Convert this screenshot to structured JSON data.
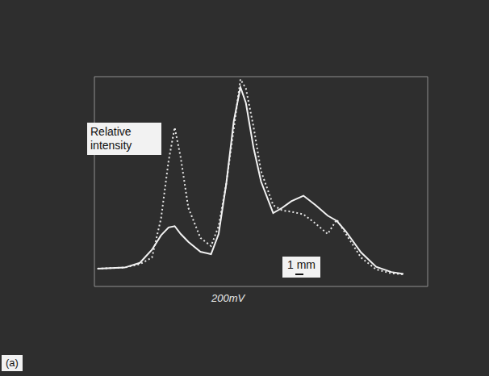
{
  "chart_data": {
    "type": "line",
    "ylabel": "Relative intensity",
    "annotations": [
      "200mV",
      "1 mm"
    ],
    "panel": "(a)",
    "x": [
      -0.9,
      0,
      0.5,
      0.9,
      1.2,
      1.45,
      1.65,
      1.85,
      2.1,
      2.5,
      2.85,
      3.1,
      3.35,
      3.6,
      3.82,
      4.0,
      4.25,
      4.5,
      4.9,
      5.2,
      5.5,
      5.9,
      6.3,
      6.7,
      7.0,
      7.3,
      7.8,
      8.3,
      8.8,
      9.2
    ],
    "series": [
      {
        "color": "#e6e6e6",
        "line_style": "dotted",
        "values": [
          0.68,
          0.72,
          0.85,
          1.1,
          2.6,
          4.8,
          6.06,
          4.9,
          3.0,
          1.85,
          1.54,
          2.3,
          3.9,
          6.0,
          7.9,
          7.55,
          6.1,
          4.4,
          3.1,
          2.9,
          2.85,
          2.75,
          2.4,
          2.0,
          2.55,
          2.0,
          1.1,
          0.65,
          0.5,
          0.46
        ]
      },
      {
        "color": "#f2f2f2",
        "line_style": "solid",
        "values": [
          0.68,
          0.72,
          0.9,
          1.4,
          1.95,
          2.25,
          2.3,
          2.0,
          1.7,
          1.32,
          1.23,
          2.0,
          3.9,
          6.3,
          7.6,
          7.0,
          5.3,
          4.0,
          2.8,
          3.0,
          3.25,
          3.46,
          3.1,
          2.7,
          2.5,
          2.1,
          1.3,
          0.75,
          0.55,
          0.48
        ]
      }
    ],
    "xlim": [
      -1,
      10
    ],
    "xticks": [
      0,
      1,
      2,
      3,
      4,
      5,
      6,
      7,
      8,
      9,
      10
    ],
    "ylim": [
      0,
      8
    ],
    "yticks": [
      0,
      1,
      2,
      3,
      4,
      5,
      6,
      7,
      8
    ],
    "grid": true,
    "tick_labels": false
  }
}
